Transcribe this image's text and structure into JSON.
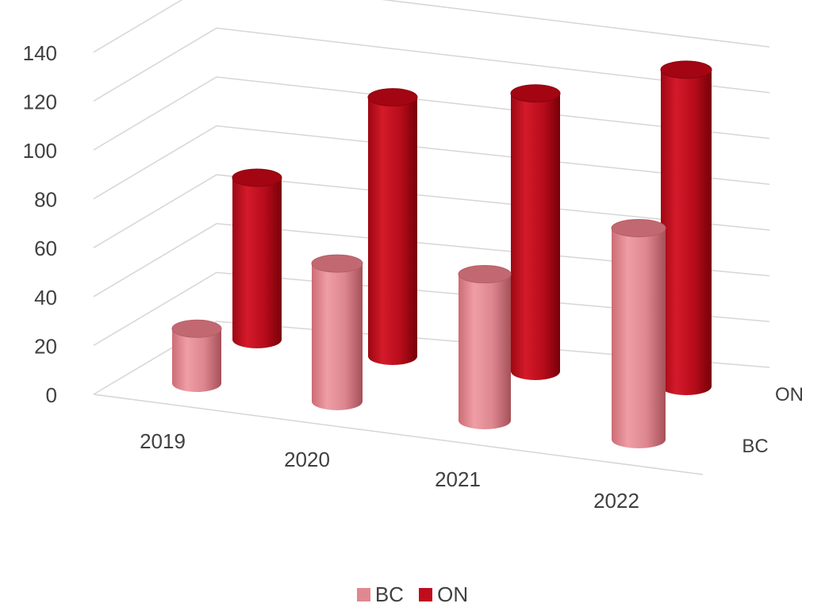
{
  "chart_data": {
    "type": "bar",
    "variant": "3d-cylinder",
    "title": "",
    "xlabel": "",
    "ylabel": "",
    "categories": [
      "2019",
      "2020",
      "2021",
      "2022"
    ],
    "depth_labels": [
      "BC",
      "ON"
    ],
    "ylim": [
      0,
      140
    ],
    "yticks": [
      "0",
      "20",
      "40",
      "60",
      "80",
      "100",
      "120",
      "140"
    ],
    "grid": true,
    "legend_position": "bottom",
    "series": [
      {
        "name": "BC",
        "color": "#e08890",
        "values": [
          16,
          54,
          58,
          82
        ]
      },
      {
        "name": "ON",
        "color": "#c00d1e",
        "values": [
          60,
          102,
          113,
          130
        ]
      }
    ]
  }
}
